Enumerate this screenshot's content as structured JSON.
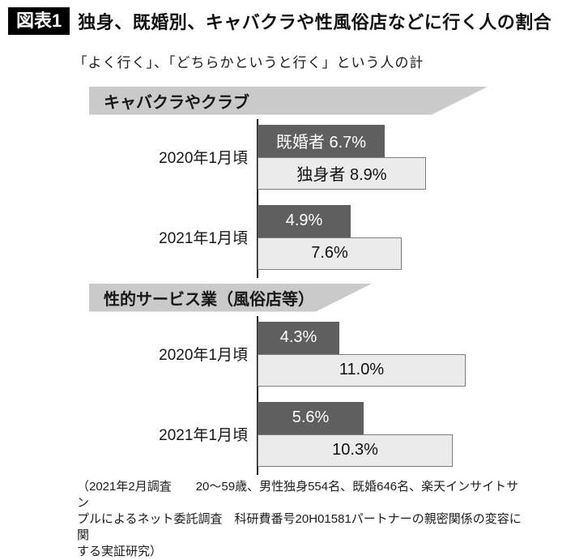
{
  "header": {
    "badge": "図表1",
    "title": "独身、既婚別、キャバクラや性風俗店などに行く人の割合",
    "subtitle": "「よく行く」、「どちらかというと行く」という人の計"
  },
  "chart_data": {
    "type": "bar",
    "orientation": "horizontal",
    "unit": "%",
    "legend": [
      "既婚者",
      "独身者"
    ],
    "axis_range_percent": [
      0,
      16.5
    ],
    "grid": false,
    "colors": {
      "married_bar": "#5f5f5f",
      "single_bar": "#ebebeb",
      "single_bar_border": "#7f7f7f",
      "banner": "#cacaca"
    },
    "sections": [
      {
        "title": "キャバクラやクラブ",
        "groups": [
          {
            "category": "2020年1月頃",
            "married": {
              "value": 6.7,
              "label": "既婚者 6.7%"
            },
            "single": {
              "value": 8.9,
              "label": "独身者 8.9%"
            }
          },
          {
            "category": "2021年1月頃",
            "married": {
              "value": 4.9,
              "label": "4.9%"
            },
            "single": {
              "value": 7.6,
              "label": "7.6%"
            }
          }
        ]
      },
      {
        "title": "性的サービス業（風俗店等）",
        "groups": [
          {
            "category": "2020年1月頃",
            "married": {
              "value": 4.3,
              "label": "4.3%"
            },
            "single": {
              "value": 11.0,
              "label": "11.0%"
            }
          },
          {
            "category": "2021年1月頃",
            "married": {
              "value": 5.6,
              "label": "5.6%"
            },
            "single": {
              "value": 10.3,
              "label": "10.3%"
            }
          }
        ]
      }
    ]
  },
  "footnote": {
    "lines": [
      "（2021年2月調査　　20～59歳、男性独身554名、既婚646名、楽天インサイトサン",
      "プルによるネット委託調査　科研費番号20H01581パートナーの親密関係の変容に関",
      "する実証研究）"
    ]
  }
}
